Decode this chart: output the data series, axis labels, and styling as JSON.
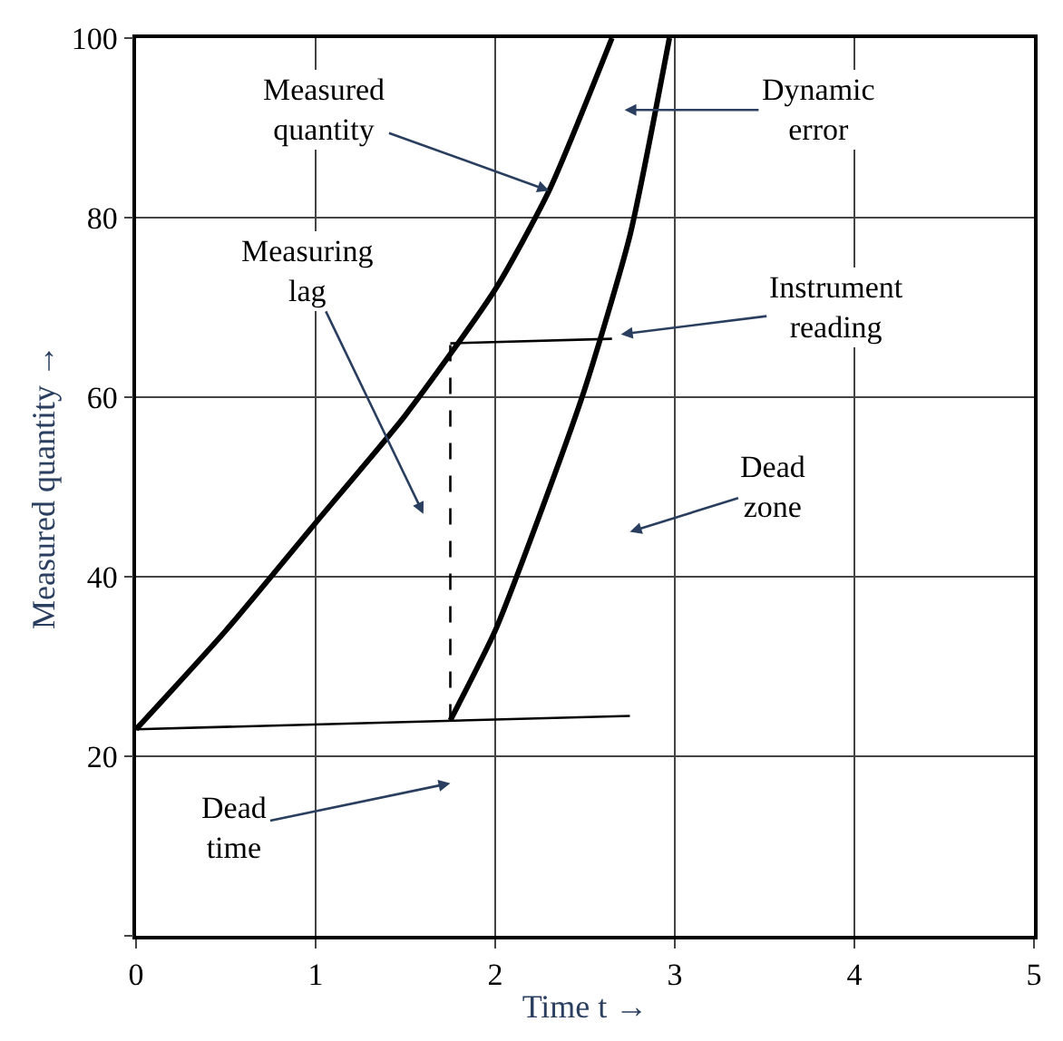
{
  "chart_data": {
    "type": "line",
    "xlabel": "Time t →",
    "ylabel": "Measured quantity →",
    "xlim": [
      0,
      5
    ],
    "ylim": [
      0,
      100
    ],
    "xticks": [
      0,
      1,
      2,
      3,
      4,
      5
    ],
    "yticks": [
      {
        "value": 0,
        "label": null
      },
      20,
      40,
      60,
      80,
      100
    ],
    "grid": true,
    "marker": "none",
    "series": [
      {
        "color": "#000000",
        "x": [
          0,
          0.5,
          1,
          1.5,
          2,
          2.3,
          2.65
        ],
        "values": [
          23,
          34,
          46,
          58,
          72,
          83,
          100
        ]
      },
      {
        "color": "#000000",
        "x": [
          1.75,
          2,
          2.25,
          2.5,
          2.75,
          2.97
        ],
        "values": [
          24,
          34,
          47,
          61,
          78,
          100
        ]
      },
      {
        "color": "#000000",
        "x": [
          0,
          2.75
        ],
        "values": [
          23,
          24.5
        ]
      },
      {
        "color": "#000000",
        "x": [
          1.75,
          2.65
        ],
        "values": [
          66,
          66.5
        ]
      },
      {
        "color": "#000000",
        "x": [
          1.75,
          1.75
        ],
        "values": [
          24,
          66
        ],
        "line_style": "dashed"
      }
    ],
    "annotations": [
      {
        "text": "Measured\nquantity",
        "x": 2.3,
        "y": 83
      },
      "Dynamic\nerror",
      "Measuring\nlag",
      "Instrument\nreading",
      "Dead\nzone",
      "Dead\ntime"
    ]
  }
}
